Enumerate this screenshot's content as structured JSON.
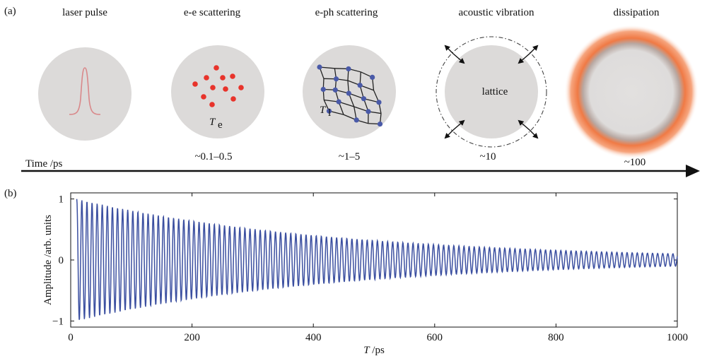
{
  "panel_a": {
    "tag": "(a)",
    "stages": [
      {
        "title": "laser pulse",
        "time": ""
      },
      {
        "title": "e-e scattering",
        "time": "~0.1–0.5"
      },
      {
        "title": "e-ph scattering",
        "time": "~1–5"
      },
      {
        "title": "acoustic vibration",
        "time": "~10"
      },
      {
        "title": "dissipation",
        "time": "~100"
      }
    ],
    "axis_label": "Time /ps",
    "lattice_label": "lattice",
    "te_symbol": "T",
    "te_sub": "e",
    "tl_symbol": "T",
    "tl_sub": "l",
    "colors": {
      "circle": "#dcdad9",
      "electron": "#e8332b",
      "pulse": "#d9888a",
      "lattice_node": "#4a5aa8",
      "dissipation": "#f07a45"
    }
  },
  "panel_b": {
    "tag": "(b)",
    "chart_data": {
      "type": "line",
      "title": "",
      "xlabel_symbol": "T",
      "xlabel_unit": " /ps",
      "ylabel": "Amplitude /arb. units",
      "xlim": [
        0,
        1000
      ],
      "ylim": [
        -1.1,
        1.1
      ],
      "xticks": [
        0,
        200,
        400,
        600,
        800,
        1000
      ],
      "yticks": [
        -1,
        0,
        1
      ],
      "series": [
        {
          "name": "damped oscillation",
          "color": "#3b4fa0",
          "model": "A(t) = exp(-t/tau) * sin(2*pi*t/period)",
          "start_ps": 10,
          "end_ps": 1000,
          "tau_ps": 430,
          "period_ps": 8.4,
          "initial_amplitude": 1.0
        }
      ]
    }
  }
}
